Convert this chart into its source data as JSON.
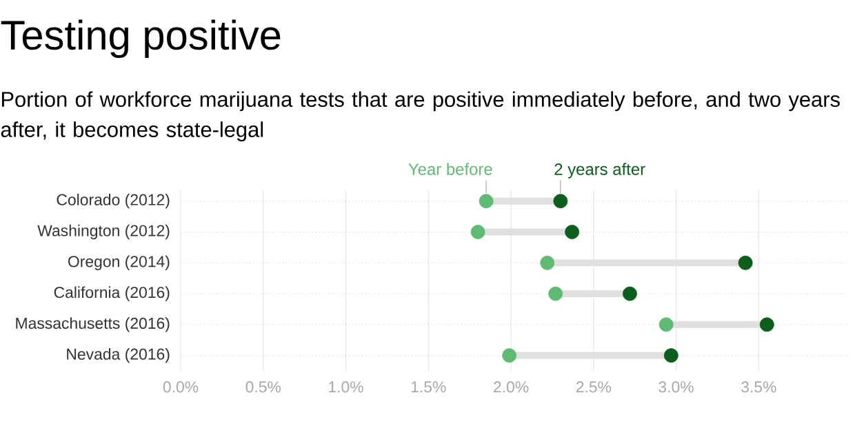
{
  "chart_data": {
    "type": "scatter",
    "orientation": "horizontal",
    "title": "Testing positive",
    "subtitle": "Portion of workforce marijuana tests that are positive immediately before, and two years after, it becomes state-legal",
    "categories": [
      "Colorado (2012)",
      "Washington (2012)",
      "Oregon (2014)",
      "California (2016)",
      "Massachusetts (2016)",
      "Nevada (2016)"
    ],
    "series": [
      {
        "name": "Year before",
        "color": "#5fbb73",
        "values": [
          1.85,
          1.8,
          2.22,
          2.27,
          2.94,
          1.99
        ]
      },
      {
        "name": "2 years after",
        "color": "#0b5e1c",
        "values": [
          2.3,
          2.37,
          3.42,
          2.72,
          3.55,
          2.97
        ]
      }
    ],
    "xlim": [
      0,
      4.05
    ],
    "xticks": [
      {
        "value": 0,
        "label": "0.0%"
      },
      {
        "value": 0.5,
        "label": "0.5%"
      },
      {
        "value": 1,
        "label": "1.0%"
      },
      {
        "value": 1.5,
        "label": "1.5%"
      },
      {
        "value": 2,
        "label": "2.0%"
      },
      {
        "value": 2.5,
        "label": "2.5%"
      },
      {
        "value": 3,
        "label": "3.0%"
      },
      {
        "value": 3.5,
        "label": "3.5%"
      }
    ],
    "grid": true,
    "legend": "top"
  }
}
